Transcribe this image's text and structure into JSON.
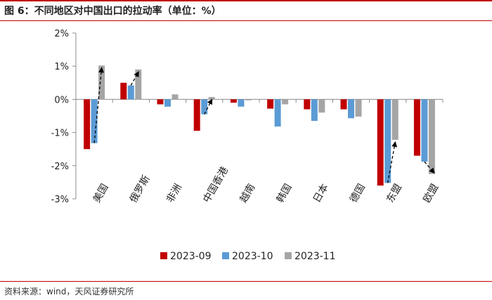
{
  "header": {
    "title": "图 6：不同地区对中国出口的拉动率（单位：%）"
  },
  "footer": {
    "source": "资料来源：wind，天风证券研究所"
  },
  "colors": {
    "s1": "#c00000",
    "s2": "#5b9bd5",
    "s3": "#a5a5a5",
    "axis": "#8c8c8c",
    "accent": "#c00000"
  },
  "chart_data": {
    "type": "bar",
    "title": "不同地区对中国出口的拉动率（单位：%）",
    "xlabel": "",
    "ylabel": "",
    "ylim": [
      -3,
      2
    ],
    "yticks": [
      2,
      1,
      0,
      -1,
      -2,
      -3
    ],
    "ytick_labels": [
      "2%",
      "1%",
      "0%",
      "-1%",
      "-2%",
      "-3%"
    ],
    "categories": [
      "美国",
      "俄罗斯",
      "非洲",
      "中国香港",
      "越南",
      "韩国",
      "日本",
      "德国",
      "东盟",
      "欧盟"
    ],
    "series": [
      {
        "name": "2023-09",
        "values": [
          -1.5,
          0.5,
          -0.15,
          -0.95,
          -0.1,
          -0.28,
          -0.3,
          -0.3,
          -2.6,
          -1.7
        ]
      },
      {
        "name": "2023-10",
        "values": [
          -1.32,
          0.42,
          -0.22,
          -0.45,
          -0.22,
          -0.82,
          -0.65,
          -0.57,
          -2.52,
          -1.88
        ]
      },
      {
        "name": "2023-11",
        "values": [
          1.02,
          0.9,
          0.15,
          0.07,
          -0.03,
          -0.15,
          -0.4,
          -0.52,
          -1.22,
          -2.25
        ]
      }
    ],
    "legend_position": "bottom",
    "annotations": "dashed arrows from 2023-10 bar to 2023-11 bar for 美国, 俄罗斯, 中国香港, 东盟, 欧盟",
    "arrow_categories": [
      0,
      1,
      3,
      8,
      9
    ]
  }
}
